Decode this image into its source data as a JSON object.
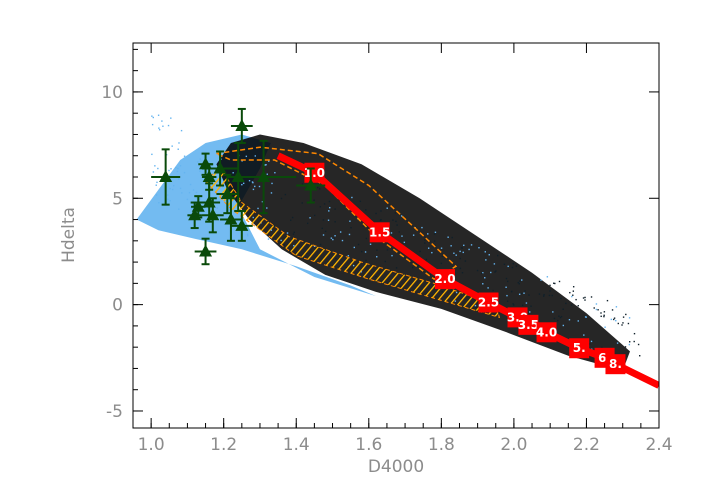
{
  "chart_data": {
    "type": "scatter",
    "title": "",
    "xlabel": "D4000",
    "ylabel": "Hdelta",
    "xlim": [
      0.95,
      2.4
    ],
    "ylim": [
      -5.8,
      12.3
    ],
    "x_ticks": [
      "1.0",
      "1.2",
      "1.4",
      "1.6",
      "1.8",
      "2.0",
      "2.2",
      "2.4"
    ],
    "y_ticks": [
      "-5",
      "0",
      "5",
      "10"
    ],
    "grid": false,
    "legend": "none",
    "colors": {
      "model_track": "#ff0000",
      "observed_points": "#0a4a0a",
      "background_dense": "#000000",
      "background_blue": "#64b4f0",
      "band_outer": "#ff8800",
      "band_inner": "#ffe400",
      "axis": "#000000",
      "label_text": "#8c8c8c"
    },
    "series": [
      {
        "marker": "square",
        "line": true,
        "age_labels": [
          "1.0",
          "1.5",
          "2.0",
          "2.5",
          "3.0",
          "3.5",
          "4.0",
          "5.",
          "6.",
          "8."
        ],
        "points": [
          {
            "x": 1.45,
            "y": 6.2
          },
          {
            "x": 1.63,
            "y": 3.4
          },
          {
            "x": 1.81,
            "y": 1.2
          },
          {
            "x": 1.93,
            "y": 0.1
          },
          {
            "x": 2.01,
            "y": -0.6
          },
          {
            "x": 2.04,
            "y": -0.95
          },
          {
            "x": 2.09,
            "y": -1.3
          },
          {
            "x": 2.18,
            "y": -2.05
          },
          {
            "x": 2.25,
            "y": -2.5
          },
          {
            "x": 2.28,
            "y": -2.8
          }
        ],
        "line_extra": [
          {
            "x": 1.35,
            "y": 7.0
          },
          {
            "x": 2.4,
            "y": -3.8
          }
        ]
      },
      {
        "marker": "triangle",
        "error_bars": true,
        "points": [
          {
            "x": 1.04,
            "y": 6.0,
            "xerr": 0.04,
            "yerr": 1.3
          },
          {
            "x": 1.12,
            "y": 4.2,
            "xerr": 0.02,
            "yerr": 0.6
          },
          {
            "x": 1.13,
            "y": 4.6,
            "xerr": 0.02,
            "yerr": 0.5
          },
          {
            "x": 1.15,
            "y": 6.6,
            "xerr": 0.02,
            "yerr": 0.5
          },
          {
            "x": 1.15,
            "y": 2.5,
            "xerr": 0.03,
            "yerr": 0.6
          },
          {
            "x": 1.16,
            "y": 4.8,
            "xerr": 0.03,
            "yerr": 0.9
          },
          {
            "x": 1.16,
            "y": 6.0,
            "xerr": 0.02,
            "yerr": 0.6
          },
          {
            "x": 1.17,
            "y": 4.2,
            "xerr": 0.03,
            "yerr": 0.8
          },
          {
            "x": 1.19,
            "y": 6.4,
            "xerr": 0.05,
            "yerr": 0.8
          },
          {
            "x": 1.21,
            "y": 5.2,
            "xerr": 0.03,
            "yerr": 0.9
          },
          {
            "x": 1.22,
            "y": 4.0,
            "xerr": 0.03,
            "yerr": 1.0
          },
          {
            "x": 1.24,
            "y": 6.0,
            "xerr": 0.03,
            "yerr": 1.6
          },
          {
            "x": 1.25,
            "y": 8.4,
            "xerr": 0.03,
            "yerr": 0.8
          },
          {
            "x": 1.25,
            "y": 3.7,
            "xerr": 0.03,
            "yerr": 0.7
          },
          {
            "x": 1.31,
            "y": 6.0,
            "xerr": 0.09,
            "yerr": 1.7
          },
          {
            "x": 1.44,
            "y": 5.6,
            "xerr": 0.04,
            "yerr": 0.8
          }
        ]
      }
    ]
  }
}
